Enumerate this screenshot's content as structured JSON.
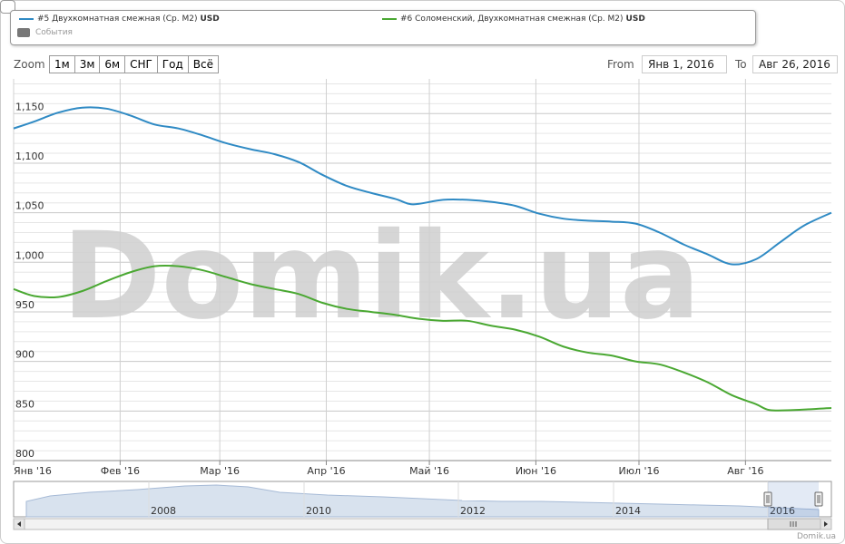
{
  "legend": {
    "series1_label": "#5 Двухкомнатная смежная (Ср. М2)",
    "series1_unit": "USD",
    "series2_label": "#6 Соломенский, Двухкомнатная смежная (Ср. М2)",
    "series2_unit": "USD",
    "events_label": "События"
  },
  "toolbar": {
    "zoom_label": "Zoom",
    "zoom_buttons": [
      "1м",
      "3м",
      "6м",
      "СНГ",
      "Год",
      "Всё"
    ],
    "from_label": "From",
    "from_value": "Янв 1, 2016",
    "to_label": "To",
    "to_value": "Авг 26, 2016"
  },
  "watermark": "Domik.ua",
  "footer": "Domik.ua",
  "colors": {
    "series1": "#2f8ac4",
    "series2": "#4aa832",
    "grid": "#d8d8d8",
    "axis": "#555555"
  },
  "chart_data": {
    "type": "line",
    "xlabel": "",
    "ylabel": "",
    "ylim": [
      800,
      1185
    ],
    "xlim": [
      "2016-01-01",
      "2016-08-26"
    ],
    "y_ticks": [
      "800",
      "850",
      "900",
      "950",
      "1,000",
      "1,050",
      "1,100",
      "1,150"
    ],
    "x_ticks": [
      {
        "label": "Янв '16",
        "date": "2016-01-01"
      },
      {
        "label": "Фев '16",
        "date": "2016-02-01"
      },
      {
        "label": "Мар '16",
        "date": "2016-03-01"
      },
      {
        "label": "Апр '16",
        "date": "2016-04-01"
      },
      {
        "label": "Май '16",
        "date": "2016-05-01"
      },
      {
        "label": "Июн '16",
        "date": "2016-06-01"
      },
      {
        "label": "Июл '16",
        "date": "2016-07-01"
      },
      {
        "label": "Авг '16",
        "date": "2016-08-01"
      }
    ],
    "grid": true,
    "series": [
      {
        "name": "#5 Двухкомнатная смежная (Ср. М2)",
        "points": [
          [
            "2016-01-01",
            1135
          ],
          [
            "2016-01-07",
            1142
          ],
          [
            "2016-01-14",
            1151
          ],
          [
            "2016-01-21",
            1156
          ],
          [
            "2016-01-28",
            1155
          ],
          [
            "2016-02-04",
            1148
          ],
          [
            "2016-02-11",
            1139
          ],
          [
            "2016-02-18",
            1135
          ],
          [
            "2016-02-25",
            1128
          ],
          [
            "2016-03-03",
            1120
          ],
          [
            "2016-03-10",
            1114
          ],
          [
            "2016-03-17",
            1109
          ],
          [
            "2016-03-24",
            1101
          ],
          [
            "2016-03-31",
            1088
          ],
          [
            "2016-04-07",
            1077
          ],
          [
            "2016-04-14",
            1070
          ],
          [
            "2016-04-21",
            1064
          ],
          [
            "2016-04-25",
            1059
          ],
          [
            "2016-04-28",
            1059
          ],
          [
            "2016-05-05",
            1063
          ],
          [
            "2016-05-12",
            1063
          ],
          [
            "2016-05-19",
            1061
          ],
          [
            "2016-05-26",
            1057
          ],
          [
            "2016-06-02",
            1049
          ],
          [
            "2016-06-09",
            1044
          ],
          [
            "2016-06-16",
            1042
          ],
          [
            "2016-06-23",
            1041
          ],
          [
            "2016-06-30",
            1039
          ],
          [
            "2016-07-07",
            1030
          ],
          [
            "2016-07-14",
            1018
          ],
          [
            "2016-07-21",
            1008
          ],
          [
            "2016-07-28",
            998
          ],
          [
            "2016-08-04",
            1003
          ],
          [
            "2016-08-11",
            1020
          ],
          [
            "2016-08-18",
            1037
          ],
          [
            "2016-08-26",
            1050
          ]
        ]
      },
      {
        "name": "#6 Соломенский, Двухкомнатная смежная (Ср. М2)",
        "points": [
          [
            "2016-01-01",
            973
          ],
          [
            "2016-01-07",
            966
          ],
          [
            "2016-01-14",
            965
          ],
          [
            "2016-01-21",
            971
          ],
          [
            "2016-01-28",
            981
          ],
          [
            "2016-02-04",
            990
          ],
          [
            "2016-02-11",
            996
          ],
          [
            "2016-02-18",
            996
          ],
          [
            "2016-02-25",
            992
          ],
          [
            "2016-03-03",
            985
          ],
          [
            "2016-03-10",
            978
          ],
          [
            "2016-03-17",
            973
          ],
          [
            "2016-03-24",
            968
          ],
          [
            "2016-03-31",
            959
          ],
          [
            "2016-04-07",
            953
          ],
          [
            "2016-04-14",
            950
          ],
          [
            "2016-04-21",
            947
          ],
          [
            "2016-04-28",
            943
          ],
          [
            "2016-05-05",
            941
          ],
          [
            "2016-05-12",
            941
          ],
          [
            "2016-05-19",
            936
          ],
          [
            "2016-05-26",
            932
          ],
          [
            "2016-06-02",
            925
          ],
          [
            "2016-06-09",
            915
          ],
          [
            "2016-06-16",
            909
          ],
          [
            "2016-06-23",
            906
          ],
          [
            "2016-06-30",
            900
          ],
          [
            "2016-07-07",
            897
          ],
          [
            "2016-07-14",
            889
          ],
          [
            "2016-07-21",
            879
          ],
          [
            "2016-07-28",
            866
          ],
          [
            "2016-08-04",
            857
          ],
          [
            "2016-08-08",
            851
          ],
          [
            "2016-08-15",
            851
          ],
          [
            "2016-08-26",
            853
          ]
        ]
      }
    ],
    "navigator": {
      "labels": [
        "2008",
        "2010",
        "2012",
        "2014",
        "2016"
      ]
    }
  }
}
